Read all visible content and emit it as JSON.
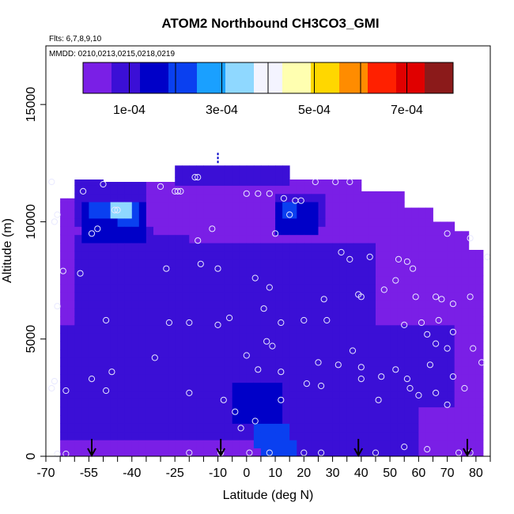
{
  "chart_data": {
    "type": "heatmap",
    "title": "ATOM2 Northbound CH3CO3_GMI",
    "flights_note": "Flts: 6,7,8,9,10",
    "dates_note": "MMDD: 0210,0213,0215,0218,0219",
    "xlabel": "Latitude (deg N)",
    "ylabel": "Altitude (m)",
    "xlim": [
      -70,
      85
    ],
    "ylim": [
      0,
      17500
    ],
    "x_ticks": [
      -70,
      -55,
      -40,
      -25,
      -10,
      0,
      10,
      20,
      30,
      40,
      50,
      60,
      70,
      80
    ],
    "y_ticks": [
      0,
      5000,
      10000,
      15000
    ],
    "colorbar": {
      "range": [
        0,
        0.0008
      ],
      "tick_values": [
        0.0001,
        0.0003,
        0.0005,
        0.0007
      ],
      "tick_labels": [
        "1e-04",
        "3e-04",
        "5e-04",
        "7e-04"
      ],
      "colors": [
        "#7a1fe6",
        "#3b0fd6",
        "#0000c8",
        "#0a40f0",
        "#1aa0ff",
        "#8fd8ff",
        "#f4f4ff",
        "#ffffb0",
        "#ffd700",
        "#ff8c00",
        "#ff2000",
        "#e00000",
        "#8b1a1a"
      ]
    },
    "background_value": 3e-05,
    "regions": [
      {
        "lat": [
          -25,
          14
        ],
        "alt": [
          11600,
          12500
        ],
        "value": 7e-05
      },
      {
        "lat": [
          -60,
          -35
        ],
        "alt": [
          9800,
          11800
        ],
        "value": 8e-05
      },
      {
        "lat": [
          -57,
          -35
        ],
        "alt": [
          9200,
          11000
        ],
        "value": 0.00014
      },
      {
        "lat": [
          -55,
          -38
        ],
        "alt": [
          10000,
          10900
        ],
        "value": 0.00022
      },
      {
        "lat": [
          -47,
          -40
        ],
        "alt": [
          10300,
          10800
        ],
        "value": 0.00034
      },
      {
        "lat": [
          -46,
          -38
        ],
        "alt": [
          9700,
          10400
        ],
        "value": 0.00024
      },
      {
        "lat": [
          -45,
          -33
        ],
        "alt": [
          7500,
          9700
        ],
        "value": 0.00013
      },
      {
        "lat": [
          -40,
          -32
        ],
        "alt": [
          6500,
          7500
        ],
        "value": 0.0001
      },
      {
        "lat": [
          -60,
          -20
        ],
        "alt": [
          4500,
          9500
        ],
        "value": 8e-05
      },
      {
        "lat": [
          -12,
          3
        ],
        "alt": [
          4500,
          9000
        ],
        "value": 9e-05
      },
      {
        "lat": [
          0,
          6
        ],
        "alt": [
          6500,
          8000
        ],
        "value": 0.00011
      },
      {
        "lat": [
          10,
          28
        ],
        "alt": [
          9800,
          11200
        ],
        "value": 0.0001
      },
      {
        "lat": [
          11,
          26
        ],
        "alt": [
          9300,
          11000
        ],
        "value": 0.00017
      },
      {
        "lat": [
          12,
          18
        ],
        "alt": [
          10100,
          10900
        ],
        "value": 0.00023
      },
      {
        "lat": [
          -25,
          45
        ],
        "alt": [
          5500,
          9000
        ],
        "value": 8e-05
      },
      {
        "lat": [
          -65,
          60
        ],
        "alt": [
          800,
          5500
        ],
        "value": 7e-05
      },
      {
        "lat": [
          -15,
          60
        ],
        "alt": [
          2800,
          4500
        ],
        "value": 9e-05
      },
      {
        "lat": [
          -8,
          20
        ],
        "alt": [
          2300,
          5000
        ],
        "value": 0.00011
      },
      {
        "lat": [
          -6,
          12
        ],
        "alt": [
          1500,
          3000
        ],
        "value": 0.00016
      },
      {
        "lat": [
          2,
          16
        ],
        "alt": [
          200,
          1500
        ],
        "value": 0.0002
      },
      {
        "lat": [
          4,
          18
        ],
        "alt": [
          0,
          800
        ],
        "value": 0.00024
      },
      {
        "lat": [
          16,
          60
        ],
        "alt": [
          0,
          1300
        ],
        "value": 9e-05
      },
      {
        "lat": [
          60,
          72
        ],
        "alt": [
          2000,
          5500
        ],
        "value": 7e-05
      }
    ],
    "data_points": [
      {
        "lat": -68,
        "alt": 11700
      },
      {
        "lat": -66,
        "alt": 10300
      },
      {
        "lat": -67,
        "alt": 10000
      },
      {
        "lat": -64,
        "alt": 7900
      },
      {
        "lat": -57,
        "alt": 11300
      },
      {
        "lat": -58,
        "alt": 7800
      },
      {
        "lat": -50,
        "alt": 11600
      },
      {
        "lat": -52,
        "alt": 9700
      },
      {
        "lat": -54,
        "alt": 9500
      },
      {
        "lat": -46,
        "alt": 10500
      },
      {
        "lat": -45,
        "alt": 10500
      },
      {
        "lat": -30,
        "alt": 11500
      },
      {
        "lat": -18,
        "alt": 11900
      },
      {
        "lat": -17,
        "alt": 11900
      },
      {
        "lat": -25,
        "alt": 11300
      },
      {
        "lat": -24,
        "alt": 11300
      },
      {
        "lat": -23,
        "alt": 11300
      },
      {
        "lat": -17,
        "alt": 9200
      },
      {
        "lat": -12,
        "alt": 9700
      },
      {
        "lat": -16,
        "alt": 8200
      },
      {
        "lat": -10,
        "alt": 8000
      },
      {
        "lat": -28,
        "alt": 8000
      },
      {
        "lat": -66,
        "alt": 6400
      },
      {
        "lat": -67,
        "alt": 3200
      },
      {
        "lat": -68,
        "alt": 2900
      },
      {
        "lat": -63,
        "alt": 2800
      },
      {
        "lat": -54,
        "alt": 3300
      },
      {
        "lat": -49,
        "alt": 5800
      },
      {
        "lat": -49,
        "alt": 2800
      },
      {
        "lat": -47,
        "alt": 3600
      },
      {
        "lat": -27,
        "alt": 5700
      },
      {
        "lat": -20,
        "alt": 5700
      },
      {
        "lat": -10,
        "alt": 5600
      },
      {
        "lat": -6,
        "alt": 5900
      },
      {
        "lat": -32,
        "alt": 4200
      },
      {
        "lat": -20,
        "alt": 2700
      },
      {
        "lat": -8,
        "alt": 2400
      },
      {
        "lat": 0,
        "alt": 11200
      },
      {
        "lat": 4,
        "alt": 11200
      },
      {
        "lat": 8,
        "alt": 11200
      },
      {
        "lat": 13,
        "alt": 11000
      },
      {
        "lat": 17,
        "alt": 10900
      },
      {
        "lat": 19,
        "alt": 10900
      },
      {
        "lat": 15,
        "alt": 10300
      },
      {
        "lat": 10,
        "alt": 9500
      },
      {
        "lat": 3,
        "alt": 7600
      },
      {
        "lat": 8,
        "alt": 7200
      },
      {
        "lat": 6,
        "alt": 6300
      },
      {
        "lat": 12,
        "alt": 5700
      },
      {
        "lat": 20,
        "alt": 5800
      },
      {
        "lat": 28,
        "alt": 5800
      },
      {
        "lat": 27,
        "alt": 6700
      },
      {
        "lat": 0,
        "alt": 4300
      },
      {
        "lat": 4,
        "alt": 3700
      },
      {
        "lat": 7,
        "alt": 4900
      },
      {
        "lat": 9,
        "alt": 4700
      },
      {
        "lat": 12,
        "alt": 3600
      },
      {
        "lat": -2,
        "alt": 1200
      },
      {
        "lat": -4,
        "alt": 1900
      },
      {
        "lat": 3,
        "alt": 1500
      },
      {
        "lat": 24,
        "alt": 11700
      },
      {
        "lat": 31,
        "alt": 11700
      },
      {
        "lat": 36,
        "alt": 11700
      },
      {
        "lat": 33,
        "alt": 8700
      },
      {
        "lat": 36,
        "alt": 8400
      },
      {
        "lat": 43,
        "alt": 8500
      },
      {
        "lat": 53,
        "alt": 8400
      },
      {
        "lat": 56,
        "alt": 8300
      },
      {
        "lat": 58,
        "alt": 8000
      },
      {
        "lat": 48,
        "alt": 7100
      },
      {
        "lat": 52,
        "alt": 7500
      },
      {
        "lat": 39,
        "alt": 6900
      },
      {
        "lat": 40,
        "alt": 6800
      },
      {
        "lat": 59,
        "alt": 6800
      },
      {
        "lat": 66,
        "alt": 6800
      },
      {
        "lat": 68,
        "alt": 6700
      },
      {
        "lat": 72,
        "alt": 6500
      },
      {
        "lat": 78,
        "alt": 6800
      },
      {
        "lat": 70,
        "alt": 9500
      },
      {
        "lat": 78,
        "alt": 9300
      },
      {
        "lat": 84,
        "alt": 8500
      },
      {
        "lat": 55,
        "alt": 5600
      },
      {
        "lat": 61,
        "alt": 5700
      },
      {
        "lat": 67,
        "alt": 5800
      },
      {
        "lat": 72,
        "alt": 5300
      },
      {
        "lat": 63,
        "alt": 5200
      },
      {
        "lat": 79,
        "alt": 4600
      },
      {
        "lat": 82,
        "alt": 4000
      },
      {
        "lat": 66,
        "alt": 4800
      },
      {
        "lat": 70,
        "alt": 4600
      },
      {
        "lat": 37,
        "alt": 4500
      },
      {
        "lat": 40,
        "alt": 3800
      },
      {
        "lat": 40,
        "alt": 3300
      },
      {
        "lat": 25,
        "alt": 4000
      },
      {
        "lat": 32,
        "alt": 3900
      },
      {
        "lat": 47,
        "alt": 3400
      },
      {
        "lat": 52,
        "alt": 3700
      },
      {
        "lat": 56,
        "alt": 3300
      },
      {
        "lat": 64,
        "alt": 3900
      },
      {
        "lat": 57,
        "alt": 2900
      },
      {
        "lat": 66,
        "alt": 2700
      },
      {
        "lat": 70,
        "alt": 2200
      },
      {
        "lat": 72,
        "alt": 3400
      },
      {
        "lat": 76,
        "alt": 2900
      },
      {
        "lat": 60,
        "alt": 2600
      },
      {
        "lat": 46,
        "alt": 2400
      },
      {
        "lat": 21,
        "alt": 3100
      },
      {
        "lat": 26,
        "alt": 3000
      },
      {
        "lat": 12,
        "alt": 2400
      },
      {
        "lat": -66,
        "alt": 100
      },
      {
        "lat": -63,
        "alt": 100
      },
      {
        "lat": -20,
        "alt": 150
      },
      {
        "lat": -9,
        "alt": 150
      },
      {
        "lat": 1,
        "alt": 150
      },
      {
        "lat": 8,
        "alt": 150
      },
      {
        "lat": 20,
        "alt": 150
      },
      {
        "lat": 26,
        "alt": 150
      },
      {
        "lat": 45,
        "alt": 150
      },
      {
        "lat": 55,
        "alt": 400
      },
      {
        "lat": 63,
        "alt": 300
      },
      {
        "lat": 74,
        "alt": 150
      },
      {
        "lat": 78,
        "alt": 150
      }
    ],
    "arrows_lat": [
      -54,
      -9,
      39,
      77
    ]
  }
}
